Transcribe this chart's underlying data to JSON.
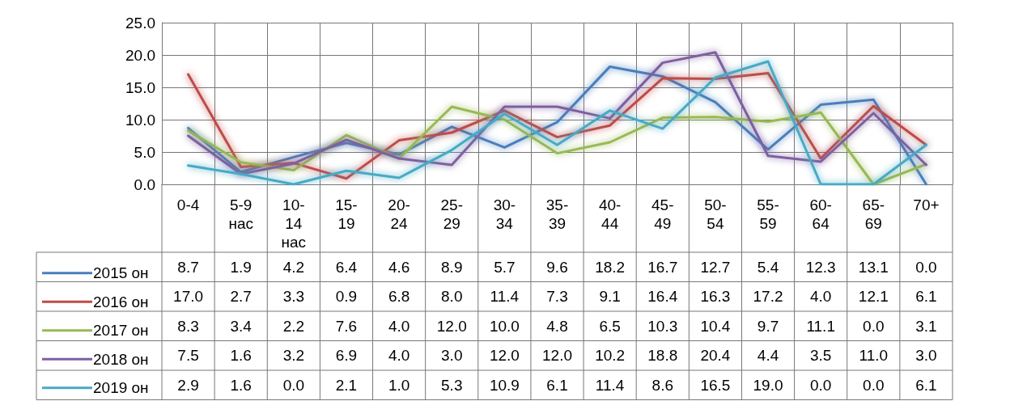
{
  "chart_data": {
    "type": "line",
    "categories": [
      "0-4",
      "5-9 нас",
      "10-14 нас",
      "15-19",
      "20-24",
      "25-29",
      "30-34",
      "35-39",
      "40-44",
      "45-49",
      "50-54",
      "55-59",
      "60-64",
      "65-69",
      "70+"
    ],
    "series": [
      {
        "name": "2015 он",
        "color": "#4a7ebb",
        "values": [
          8.7,
          1.9,
          4.2,
          6.4,
          4.6,
          8.9,
          5.7,
          9.6,
          18.2,
          16.7,
          12.7,
          5.4,
          12.3,
          13.1,
          0.0
        ],
        "value_labels": [
          "8.7",
          "1.9",
          "4.2",
          "6.4",
          "4.6",
          "8.9",
          "5.7",
          "9.6",
          "18.2",
          "16.7",
          "12.7",
          "5.4",
          "12.3",
          "13.1",
          "0.0"
        ]
      },
      {
        "name": "2016 он",
        "color": "#be4b48",
        "values": [
          17.0,
          2.7,
          3.3,
          0.9,
          6.8,
          8.0,
          11.4,
          7.3,
          9.1,
          16.4,
          16.3,
          17.2,
          4.0,
          12.1,
          6.1
        ],
        "value_labels": [
          "17.0",
          "2.7",
          "3.3",
          "0.9",
          "6.8",
          "8.0",
          "11.4",
          "7.3",
          "9.1",
          "16.4",
          "16.3",
          "17.2",
          "4.0",
          "12.1",
          "6.1"
        ]
      },
      {
        "name": "2017 он",
        "color": "#98b954",
        "values": [
          8.3,
          3.4,
          2.2,
          7.6,
          4.0,
          12.0,
          10.0,
          4.8,
          6.5,
          10.3,
          10.4,
          9.7,
          11.1,
          0.0,
          3.1
        ],
        "value_labels": [
          "8.3",
          "3.4",
          "2.2",
          "7.6",
          "4.0",
          "12.0",
          "10.0",
          "4.8",
          "6.5",
          "10.3",
          "10.4",
          "9.7",
          "11.1",
          "0.0",
          "3.1"
        ]
      },
      {
        "name": "2018 он",
        "color": "#7d60a0",
        "values": [
          7.5,
          1.6,
          3.2,
          6.9,
          4.0,
          3.0,
          12.0,
          12.0,
          10.2,
          18.8,
          20.4,
          4.4,
          3.5,
          11.0,
          3.0
        ],
        "value_labels": [
          "7.5",
          "1.6",
          "3.2",
          "6.9",
          "4.0",
          "3.0",
          "12.0",
          "12.0",
          "10.2",
          "18.8",
          "20.4",
          "4.4",
          "3.5",
          "11.0",
          "3.0"
        ]
      },
      {
        "name": "2019 он",
        "color": "#46aac5",
        "values": [
          2.9,
          1.6,
          0.0,
          2.1,
          1.0,
          5.3,
          10.9,
          6.1,
          11.4,
          8.6,
          16.5,
          19.0,
          0.0,
          0.0,
          6.1
        ],
        "value_labels": [
          "2.9",
          "1.6",
          "0.0",
          "2.1",
          "1.0",
          "5.3",
          "10.9",
          "6.1",
          "11.4",
          "8.6",
          "16.5",
          "19.0",
          "0.0",
          "0.0",
          "6.1"
        ]
      }
    ],
    "ylim": [
      0,
      25
    ],
    "yticks": [
      {
        "value": 0,
        "label": "0.0"
      },
      {
        "value": 5,
        "label": "5.0"
      },
      {
        "value": 10,
        "label": "10.0"
      },
      {
        "value": 15,
        "label": "15.0"
      },
      {
        "value": 20,
        "label": "20.0"
      },
      {
        "value": 25,
        "label": "25.0"
      }
    ],
    "grid": true,
    "legend": "bottom",
    "marker": "none",
    "line_style": "solid"
  }
}
